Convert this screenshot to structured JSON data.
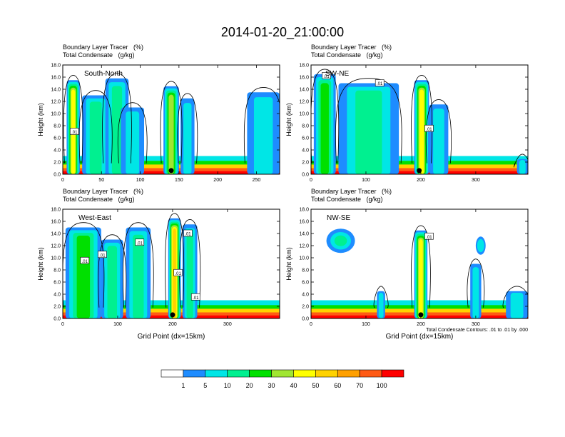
{
  "main_title": "2014-01-20_21:00:00",
  "chart_data": [
    {
      "type": "heatmap",
      "panel_label": "South-North",
      "title_line1": "Boundary Layer Tracer   (%)",
      "title_line2": "Total Condensate   (g/kg)",
      "ylabel": "Height (km)",
      "xlabel": "",
      "xlim": [
        0,
        280
      ],
      "ylim": [
        0,
        18
      ],
      "xticks": [
        0,
        50,
        100,
        150,
        200,
        250
      ],
      "yticks": [
        "0.0",
        "2.0",
        "4.0",
        "6.0",
        "8.0",
        "10.0",
        "12.0",
        "14.0",
        "16.0",
        "18.0"
      ],
      "marker_x": 140,
      "contour_labels": [
        {
          "text": ".01",
          "x": 15,
          "y": 7.0
        }
      ],
      "columns": [
        {
          "x": [
            5,
            22
          ],
          "top": 15.5,
          "level": 6
        },
        {
          "x": [
            25,
            60
          ],
          "top": 13.0,
          "level": 3
        },
        {
          "x": [
            55,
            85
          ],
          "top": 15.8,
          "level": 3
        },
        {
          "x": [
            75,
            105
          ],
          "top": 11.0,
          "level": 2
        },
        {
          "x": [
            130,
            150
          ],
          "top": 14.5,
          "level": 5
        },
        {
          "x": [
            152,
            170
          ],
          "top": 12.5,
          "level": 2
        },
        {
          "x": [
            238,
            280
          ],
          "top": 13.5,
          "level": 2
        }
      ]
    },
    {
      "type": "heatmap",
      "panel_label": "SW-NE",
      "title_line1": "Boundary Layer Tracer   (%)",
      "title_line2": "Total Condensate   (g/kg)",
      "ylabel": "Height (km)",
      "xlabel": "",
      "xlim": [
        0,
        395
      ],
      "ylim": [
        0,
        18
      ],
      "xticks": [
        0,
        100,
        200,
        300
      ],
      "yticks": [
        "0.0",
        "2.0",
        "4.0",
        "6.0",
        "8.0",
        "10.0",
        "12.0",
        "14.0",
        "16.0",
        "18.0"
      ],
      "marker_x": 197,
      "contour_labels": [
        {
          "text": ".01",
          "x": 28,
          "y": 16.2
        },
        {
          "text": ".01",
          "x": 125,
          "y": 15.0
        },
        {
          "text": ".01",
          "x": 215,
          "y": 7.5
        }
      ],
      "columns": [
        {
          "x": [
            5,
            45
          ],
          "top": 16.5,
          "level": 4
        },
        {
          "x": [
            50,
            160
          ],
          "top": 15.0,
          "level": 3
        },
        {
          "x": [
            188,
            215
          ],
          "top": 15.5,
          "level": 6
        },
        {
          "x": [
            215,
            250
          ],
          "top": 11.5,
          "level": 2
        },
        {
          "x": [
            375,
            395
          ],
          "top": 2.5,
          "level": 2
        }
      ]
    },
    {
      "type": "heatmap",
      "panel_label": "West-East",
      "title_line1": "Boundary Layer Tracer   (%)",
      "title_line2": "Total Condensate   (g/kg)",
      "ylabel": "Height (km)",
      "xlabel": "Grid Point (dx=15km)",
      "xlim": [
        0,
        395
      ],
      "ylim": [
        0,
        18
      ],
      "xticks": [
        0,
        100,
        200,
        300
      ],
      "yticks": [
        "0.0",
        "2.0",
        "4.0",
        "6.0",
        "8.0",
        "10.0",
        "12.0",
        "14.0",
        "16.0",
        "18.0"
      ],
      "marker_x": 200,
      "contour_labels": [
        {
          "text": ".01",
          "x": 40,
          "y": 9.5
        },
        {
          "text": ".01",
          "x": 72,
          "y": 10.5
        },
        {
          "text": ".01",
          "x": 140,
          "y": 12.5
        },
        {
          "text": ".01",
          "x": 228,
          "y": 14.0
        },
        {
          "text": ".01",
          "x": 210,
          "y": 7.5
        },
        {
          "text": ".01",
          "x": 242,
          "y": 3.5
        }
      ],
      "columns": [
        {
          "x": [
            5,
            70
          ],
          "top": 15.0,
          "level": 4
        },
        {
          "x": [
            70,
            110
          ],
          "top": 13.0,
          "level": 3
        },
        {
          "x": [
            115,
            160
          ],
          "top": 15.0,
          "level": 3
        },
        {
          "x": [
            192,
            215
          ],
          "top": 16.5,
          "level": 7
        },
        {
          "x": [
            218,
            245
          ],
          "top": 15.5,
          "level": 3
        }
      ]
    },
    {
      "type": "heatmap",
      "panel_label": "NW-SE",
      "title_line1": "Boundary Layer Tracer   (%)",
      "title_line2": "Total Condensate   (g/kg)",
      "ylabel": "Height (km)",
      "xlabel": "Grid Point (dx=15km)",
      "xlim": [
        0,
        395
      ],
      "ylim": [
        0,
        18
      ],
      "xticks": [
        0,
        100,
        200,
        300
      ],
      "yticks": [
        "0.0",
        "2.0",
        "4.0",
        "6.0",
        "8.0",
        "10.0",
        "12.0",
        "14.0",
        "16.0",
        "18.0"
      ],
      "marker_x": 200,
      "contour_note": "Total Condensate Contours: .01 to .01 by .000",
      "contour_labels": [
        {
          "text": ".01",
          "x": 215,
          "y": 13.5
        }
      ],
      "blobs": [
        {
          "x": [
            28,
            80
          ],
          "y": [
            10.8,
            14.8
          ],
          "level": 3
        },
        {
          "x": [
            300,
            318
          ],
          "y": [
            10.5,
            13.5
          ],
          "level": 2
        }
      ],
      "columns": [
        {
          "x": [
            188,
            212
          ],
          "top": 14.5,
          "level": 6
        },
        {
          "x": [
            120,
            135
          ],
          "top": 4.5,
          "level": 2
        },
        {
          "x": [
            290,
            310
          ],
          "top": 9.0,
          "level": 2
        },
        {
          "x": [
            355,
            395
          ],
          "top": 4.5,
          "level": 2
        }
      ]
    }
  ],
  "colorbar": {
    "colors": [
      "#ffffff",
      "#1e8cff",
      "#00e6e6",
      "#00f090",
      "#00e000",
      "#a0e632",
      "#ffff00",
      "#ffd200",
      "#ffa000",
      "#ff5a14",
      "#ff0000"
    ],
    "labels": [
      "1",
      "5",
      "10",
      "20",
      "30",
      "40",
      "50",
      "60",
      "70",
      "100"
    ]
  }
}
